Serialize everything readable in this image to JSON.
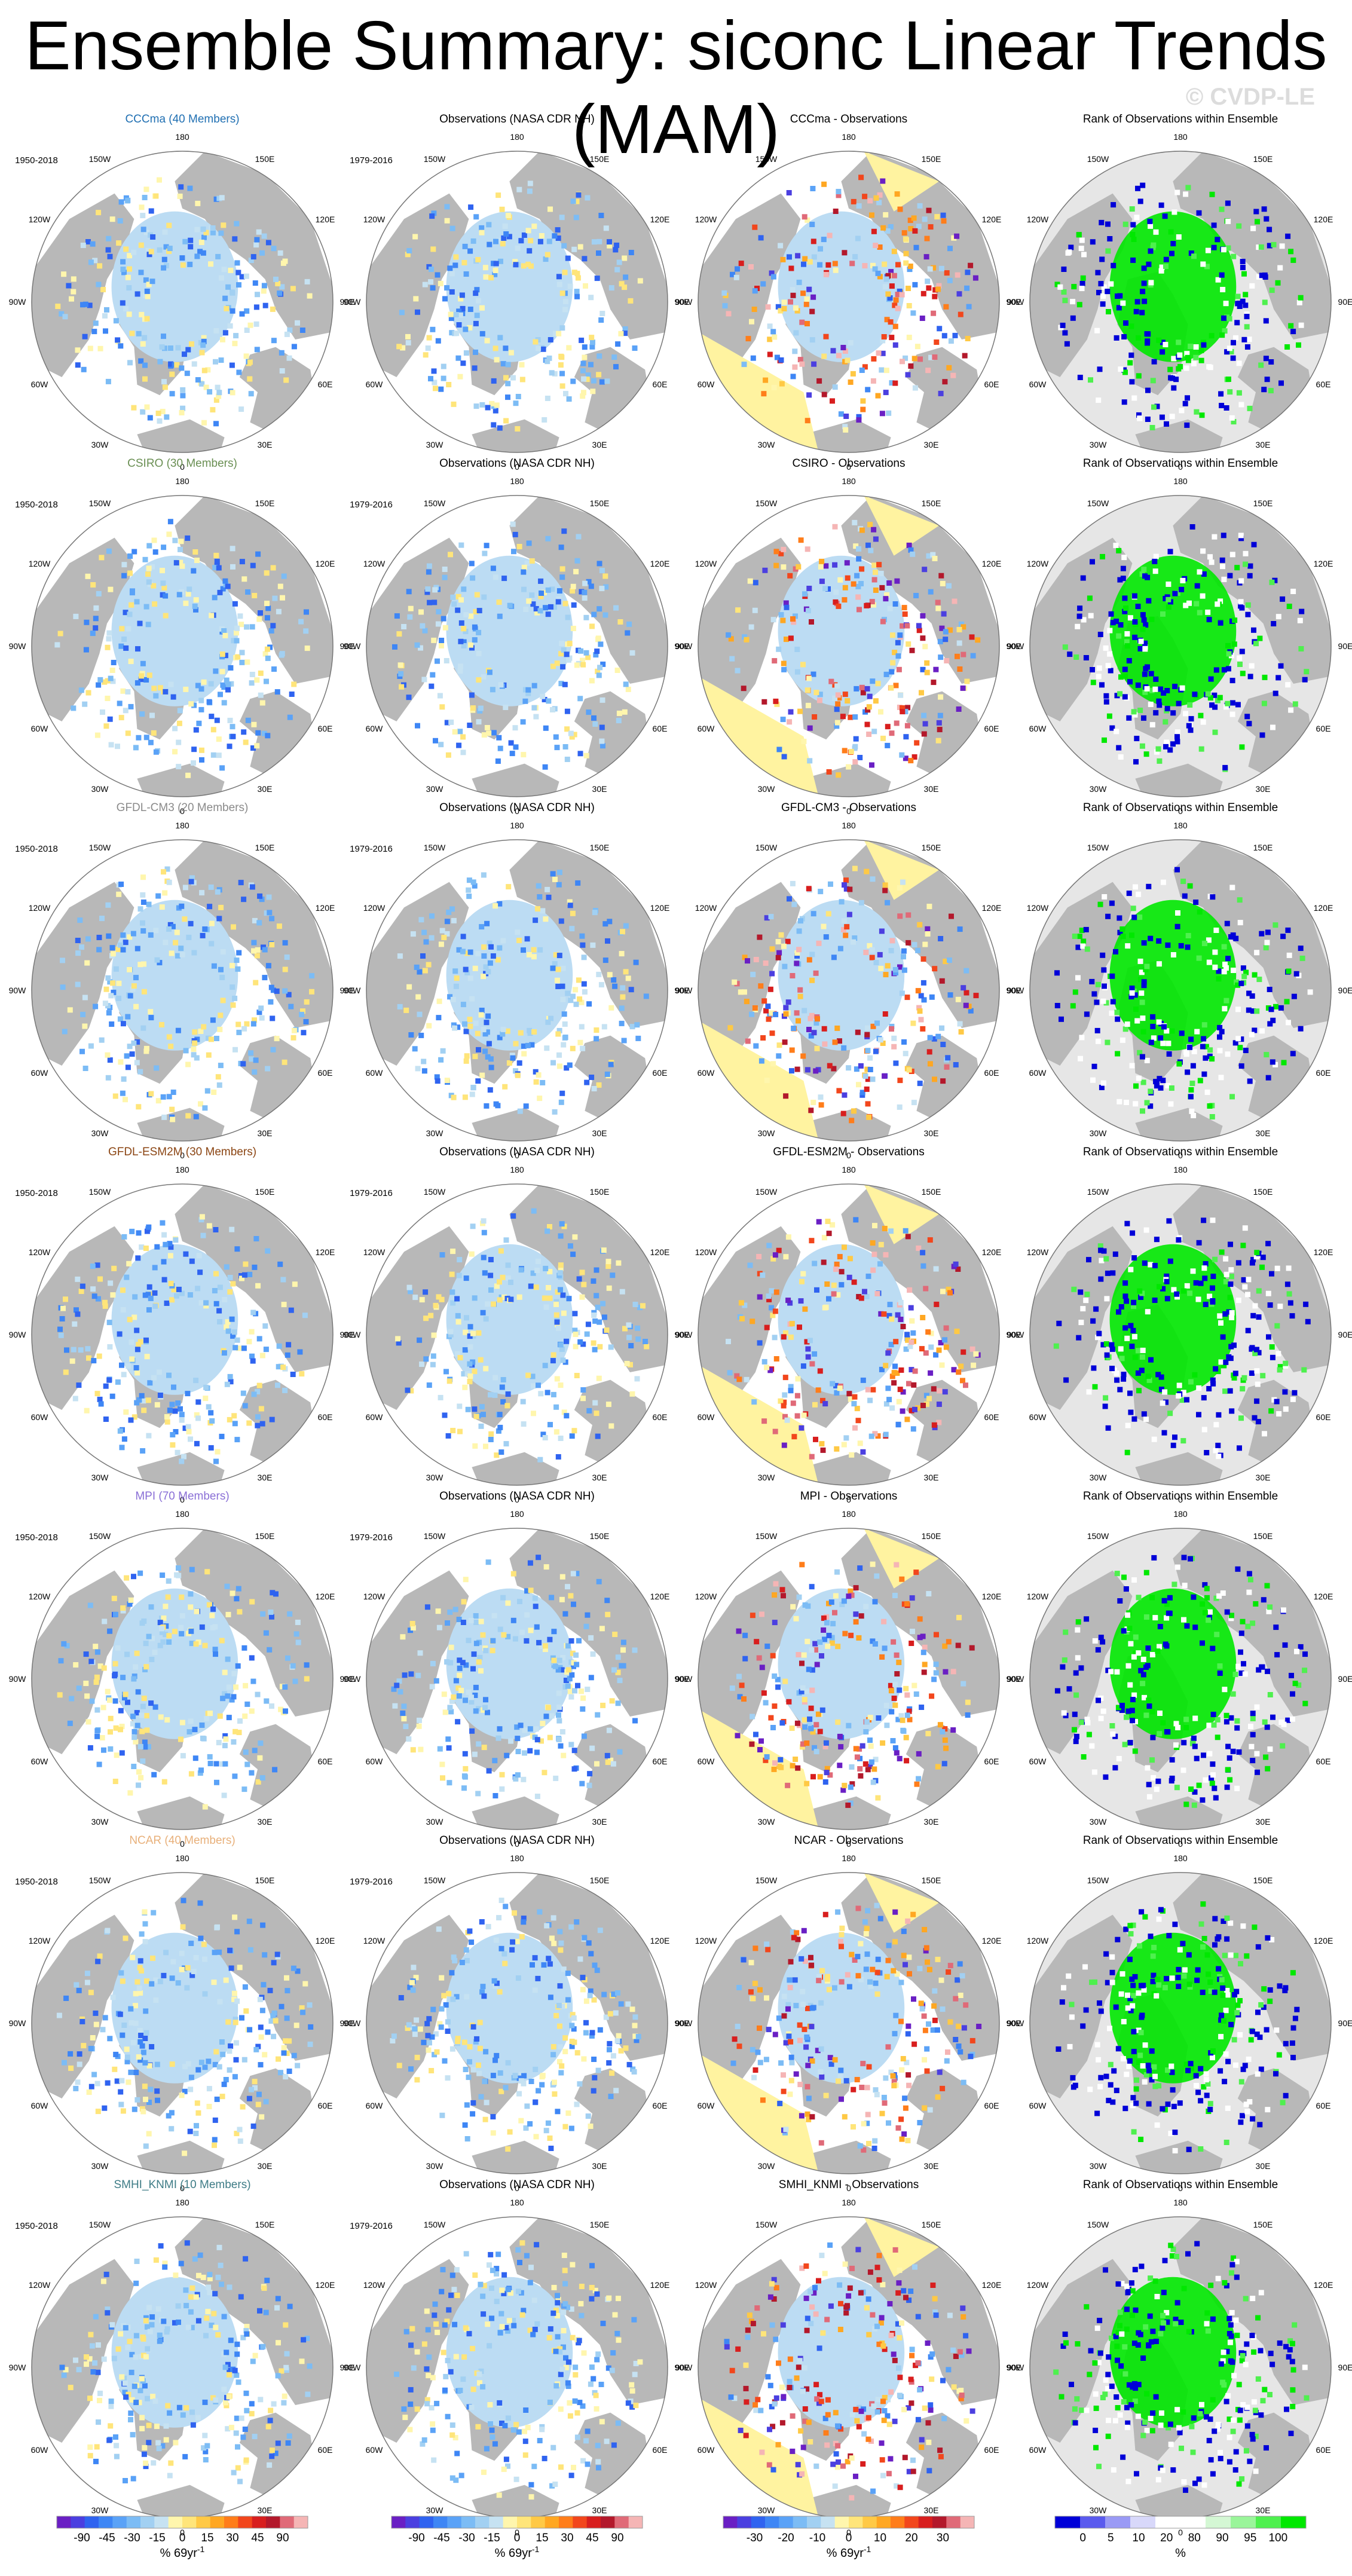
{
  "title": "Ensemble Summary: siconc Linear Trends (MAM)",
  "copyright": "© CVDP-LE",
  "chart_data": {
    "type": "heatmap",
    "projection": "north-polar-stereographic",
    "variable": "siconc",
    "season": "MAM",
    "longitude_labels": [
      "180",
      "150E",
      "120E",
      "90E",
      "60E",
      "30E",
      "0",
      "30W",
      "60W",
      "90W",
      "120W",
      "150W"
    ],
    "column_titles_fixed": {
      "observations": "Observations (NASA CDR NH)",
      "rank": "Rank of Observations within Ensemble",
      "difference_suffix": " - Observations"
    },
    "models": [
      {
        "name": "CCCma",
        "members_label": "CCCma (40 Members)",
        "color": "#1f6fb2"
      },
      {
        "name": "CSIRO",
        "members_label": "CSIRO (30 Members)",
        "color": "#6a8f53"
      },
      {
        "name": "GFDL-CM3",
        "members_label": "GFDL-CM3 (20 Members)",
        "color": "#8a8a8a"
      },
      {
        "name": "GFDL-ESM2M",
        "members_label": "GFDL-ESM2M (30 Members)",
        "color": "#8b4513"
      },
      {
        "name": "MPI",
        "members_label": "MPI (70 Members)",
        "color": "#8a6fd6"
      },
      {
        "name": "NCAR",
        "members_label": "NCAR (40 Members)",
        "color": "#e8b07a"
      },
      {
        "name": "SMHI_KNMI",
        "members_label": "SMHI_KNMI (10 Members)",
        "color": "#3e7c86"
      }
    ],
    "model_period": "1950-2018",
    "obs_period": "1979-2016",
    "colorbars": [
      {
        "name": "trend",
        "unit_label": "% 69yr",
        "unit_exponent": "-1",
        "ticks": [
          "-90",
          "-45",
          "-30",
          "-15",
          "0",
          "15",
          "30",
          "45",
          "90"
        ],
        "colors": [
          "#6a1fc4",
          "#4b3fe0",
          "#2f63f0",
          "#3e86f5",
          "#5aa2f7",
          "#7cbcf5",
          "#a2d0f2",
          "#c6e2f2",
          "#fff6ad",
          "#ffe57a",
          "#ffc945",
          "#ffa722",
          "#ff7d1a",
          "#f2461c",
          "#d81e1e",
          "#b3182b",
          "#e06a78",
          "#f5b5b5"
        ]
      },
      {
        "name": "trend",
        "unit_label": "% 69yr",
        "unit_exponent": "-1",
        "ticks": [
          "-90",
          "-45",
          "-30",
          "-15",
          "0",
          "15",
          "30",
          "45",
          "90"
        ],
        "colors": [
          "#6a1fc4",
          "#4b3fe0",
          "#2f63f0",
          "#3e86f5",
          "#5aa2f7",
          "#7cbcf5",
          "#a2d0f2",
          "#c6e2f2",
          "#fff6ad",
          "#ffe57a",
          "#ffc945",
          "#ffa722",
          "#ff7d1a",
          "#f2461c",
          "#d81e1e",
          "#b3182b",
          "#e06a78",
          "#f5b5b5"
        ]
      },
      {
        "name": "difference",
        "unit_label": "% 69yr",
        "unit_exponent": "-1",
        "ticks": [
          "-30",
          "-20",
          "-10",
          "0",
          "10",
          "20",
          "30"
        ],
        "colors": [
          "#6a1fc4",
          "#4b3fe0",
          "#2f63f0",
          "#3e86f5",
          "#5aa2f7",
          "#7cbcf5",
          "#a2d0f2",
          "#c6e2f2",
          "#fff6ad",
          "#ffe57a",
          "#ffc945",
          "#ffa722",
          "#ff7d1a",
          "#f2461c",
          "#d81e1e",
          "#b3182b",
          "#e06a78",
          "#f5b5b5"
        ]
      },
      {
        "name": "rank",
        "unit_label": "%",
        "unit_exponent": "",
        "ticks": [
          "0",
          "5",
          "10",
          "20",
          "80",
          "90",
          "95",
          "100"
        ],
        "colors": [
          "#0000d8",
          "#5a5aee",
          "#9a9af5",
          "#d8d8fa",
          "#ffffff",
          "#ffffff",
          "#d4f7d4",
          "#9af59a",
          "#4ef04e",
          "#00e800"
        ]
      }
    ],
    "palette": {
      "land": "#b8b8b8",
      "ocean_no_ice": "#ffffff",
      "rank_background": "#e6e6e6",
      "neutral_ice": "#bcdcf3",
      "yellow": "#fff3a0"
    }
  }
}
